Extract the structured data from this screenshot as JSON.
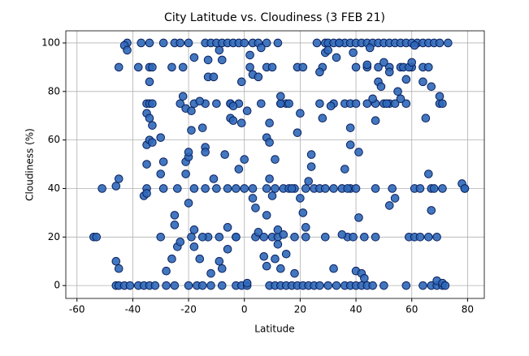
{
  "chart_data": {
    "type": "scatter",
    "title": "City Latitude vs. Cloudiness (3 FEB 21)",
    "x_label": "Latitude",
    "y_label": "Cloudiness (%)",
    "color": "#2f68b8",
    "edge_color": "#0b2260",
    "grid": true,
    "xlim": [
      -64,
      86
    ],
    "xticks": [
      -60,
      -40,
      -20,
      0,
      20,
      40,
      60,
      80
    ],
    "ylim": [
      -5.3,
      105
    ],
    "yticks": [
      0,
      20,
      40,
      60,
      80,
      100
    ],
    "x": [
      -42,
      -37,
      -34,
      -29,
      -25,
      -23,
      -20,
      -14,
      -12,
      -10,
      -8,
      -6,
      -4,
      -2,
      0,
      3,
      5,
      8,
      12,
      29,
      30,
      32,
      34,
      36,
      38,
      40,
      42,
      44,
      46,
      48,
      50,
      52,
      54,
      56,
      58,
      60,
      62,
      64,
      66,
      68,
      70,
      73,
      -46,
      -45,
      -43,
      -41,
      -38,
      -36,
      -34,
      -32,
      -28,
      -25,
      -20,
      -17,
      -15,
      -12,
      -8,
      -3,
      -1,
      1,
      9,
      11,
      13,
      15,
      17,
      19,
      21,
      23,
      25,
      27,
      30,
      33,
      36,
      38,
      40,
      42,
      44,
      46,
      50,
      58,
      64,
      67,
      69,
      71,
      -45,
      -38,
      -34,
      -33,
      -26,
      -22,
      8,
      10,
      19,
      21,
      28,
      40,
      44,
      48,
      52,
      56,
      60,
      64,
      66,
      -35,
      -34,
      -33,
      -18,
      -14,
      -10,
      -5,
      -2,
      6,
      13,
      15,
      27,
      32,
      36,
      38,
      40,
      44,
      47,
      50,
      52,
      54,
      58,
      70,
      71,
      -51,
      -35,
      -29,
      -24,
      -18,
      -14,
      -10,
      -6,
      -3,
      0,
      3,
      8,
      11,
      14,
      16,
      18,
      22,
      25,
      27,
      29,
      32,
      35,
      38,
      40,
      47,
      53,
      61,
      63,
      67,
      71,
      79,
      -54,
      -53,
      -30,
      -19,
      -13,
      -9,
      -3,
      4,
      7,
      10,
      12,
      18,
      22,
      29,
      37,
      39,
      43,
      47,
      59,
      61,
      66,
      69,
      -43,
      -42,
      -45,
      -46,
      -46,
      -45,
      -36,
      -35,
      -35,
      -34,
      -35,
      -35,
      -34,
      -33,
      -34,
      -33,
      -30,
      -30,
      -29,
      -28,
      -26,
      -25,
      -25,
      -24,
      -23,
      -23,
      -22,
      -21,
      -21,
      -20,
      -20,
      -21,
      -20,
      -19,
      -19,
      -18,
      -18,
      -18,
      -16,
      -16,
      -15,
      -15,
      -14,
      -14,
      -13,
      -13,
      -12,
      -11,
      -11,
      -9,
      -9,
      -8,
      -8,
      -7,
      -6,
      -6,
      -5,
      -5,
      -4,
      -4,
      -3,
      -2,
      -1,
      -1,
      0,
      1,
      1,
      2,
      2,
      3,
      3,
      4,
      5,
      5,
      6,
      7,
      8,
      8,
      8,
      9,
      9,
      9,
      10,
      11,
      11,
      12,
      12,
      13,
      13,
      13,
      14,
      15,
      16,
      17,
      18,
      19,
      20,
      20,
      21,
      22,
      23,
      24,
      24,
      26,
      27,
      28,
      29,
      30,
      31,
      32,
      33,
      34,
      35,
      36,
      37,
      38,
      38,
      39,
      40,
      41,
      41,
      42,
      43,
      44,
      45,
      46,
      47,
      48,
      49,
      50,
      51,
      52,
      52,
      54,
      55,
      56,
      57,
      58,
      59,
      60,
      61,
      63,
      64,
      65,
      66,
      67,
      67,
      68,
      69,
      70,
      71,
      72,
      78,
      79
    ],
    "values": [
      100,
      100,
      100,
      100,
      100,
      100,
      100,
      100,
      100,
      100,
      100,
      100,
      100,
      100,
      100,
      100,
      100,
      100,
      100,
      100,
      100,
      100,
      100,
      100,
      100,
      100,
      100,
      100,
      100,
      100,
      100,
      100,
      100,
      100,
      100,
      100,
      100,
      100,
      100,
      100,
      100,
      100,
      0,
      0,
      0,
      0,
      0,
      0,
      0,
      0,
      0,
      0,
      0,
      0,
      0,
      0,
      0,
      0,
      0,
      0,
      0,
      0,
      0,
      0,
      0,
      0,
      0,
      0,
      0,
      0,
      0,
      0,
      0,
      0,
      0,
      0,
      0,
      0,
      0,
      0,
      0,
      0,
      0,
      0,
      90,
      90,
      90,
      90,
      90,
      90,
      90,
      90,
      90,
      90,
      90,
      90,
      90,
      90,
      90,
      90,
      90,
      90,
      90,
      75,
      75,
      75,
      75,
      75,
      75,
      75,
      75,
      75,
      75,
      75,
      75,
      75,
      75,
      75,
      75,
      75,
      75,
      75,
      75,
      75,
      75,
      75,
      75,
      40,
      40,
      40,
      40,
      40,
      40,
      40,
      40,
      40,
      40,
      40,
      40,
      40,
      40,
      40,
      40,
      40,
      40,
      40,
      40,
      40,
      40,
      40,
      40,
      40,
      40,
      40,
      40,
      40,
      40,
      40,
      20,
      20,
      20,
      20,
      20,
      20,
      20,
      20,
      20,
      20,
      20,
      20,
      20,
      20,
      20,
      20,
      20,
      20,
      20,
      20,
      20,
      20,
      99,
      97,
      44,
      41,
      10,
      7,
      37,
      38,
      71,
      69,
      50,
      58,
      60,
      59,
      84,
      66,
      61,
      46,
      51,
      6,
      11,
      25,
      29,
      16,
      18,
      75,
      78,
      73,
      51,
      53,
      55,
      46,
      34,
      64,
      72,
      23,
      16,
      94,
      76,
      11,
      20,
      65,
      57,
      55,
      86,
      93,
      5,
      86,
      44,
      97,
      10,
      93,
      7,
      54,
      24,
      15,
      69,
      75,
      74,
      68,
      20,
      48,
      84,
      67,
      52,
      72,
      1,
      95,
      90,
      87,
      36,
      32,
      22,
      86,
      98,
      12,
      8,
      29,
      61,
      59,
      44,
      67,
      37,
      11,
      52,
      17,
      23,
      75,
      78,
      7,
      21,
      13,
      75,
      40,
      5,
      63,
      71,
      36,
      30,
      24,
      43,
      54,
      49,
      100,
      88,
      69,
      96,
      97,
      74,
      7,
      94,
      100,
      21,
      48,
      40,
      58,
      65,
      96,
      6,
      55,
      28,
      5,
      3,
      91,
      98,
      77,
      68,
      84,
      82,
      92,
      75,
      88,
      33,
      36,
      80,
      77,
      90,
      85,
      90,
      92,
      99,
      20,
      84,
      69,
      46,
      31,
      82,
      40,
      2,
      78,
      1,
      0,
      42,
      40
    ]
  }
}
